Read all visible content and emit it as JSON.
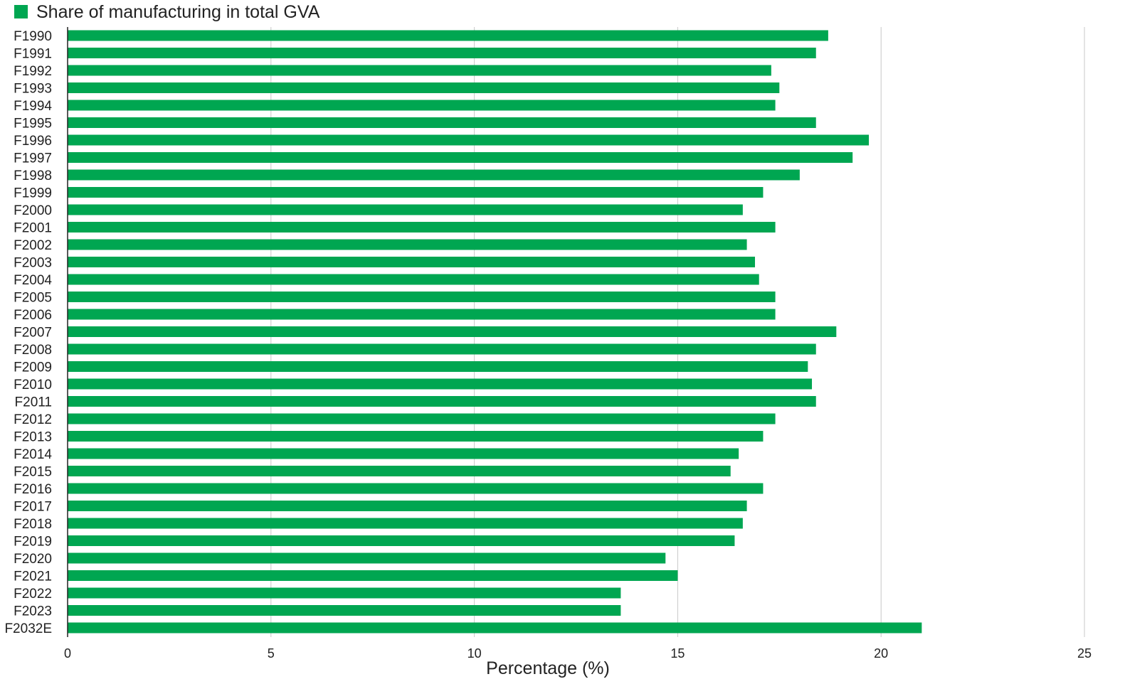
{
  "chart_data": {
    "type": "bar",
    "orientation": "horizontal",
    "categories": [
      "F1990",
      "F1991",
      "F1992",
      "F1993",
      "F1994",
      "F1995",
      "F1996",
      "F1997",
      "F1998",
      "F1999",
      "F2000",
      "F2001",
      "F2002",
      "F2003",
      "F2004",
      "F2005",
      "F2006",
      "F2007",
      "F2008",
      "F2009",
      "F2010",
      "F2011",
      "F2012",
      "F2013",
      "F2014",
      "F2015",
      "F2016",
      "F2017",
      "F2018",
      "F2019",
      "F2020",
      "F2021",
      "F2022",
      "F2023",
      "F2032E"
    ],
    "series": [
      {
        "name": "Share of manufacturing in total GVA",
        "color": "#00a651",
        "values": [
          18.7,
          18.4,
          17.3,
          17.5,
          17.4,
          18.4,
          19.7,
          19.3,
          18.0,
          17.1,
          16.6,
          17.4,
          16.7,
          16.9,
          17.0,
          17.4,
          17.4,
          18.9,
          18.4,
          18.2,
          18.3,
          18.4,
          17.4,
          17.1,
          16.5,
          16.3,
          17.1,
          16.7,
          16.6,
          16.4,
          14.7,
          15.0,
          13.6,
          13.6,
          21.0
        ]
      }
    ],
    "xlabel": "Percentage (%)",
    "ylabel": "",
    "xlim": [
      0,
      25
    ],
    "xticks": [
      0,
      5,
      10,
      15,
      20,
      25
    ],
    "grid": "vertical",
    "legend_position": "top-left"
  },
  "colors": {
    "bar": "#00a651",
    "grid": "#c8c8c8",
    "axis": "#222222"
  }
}
